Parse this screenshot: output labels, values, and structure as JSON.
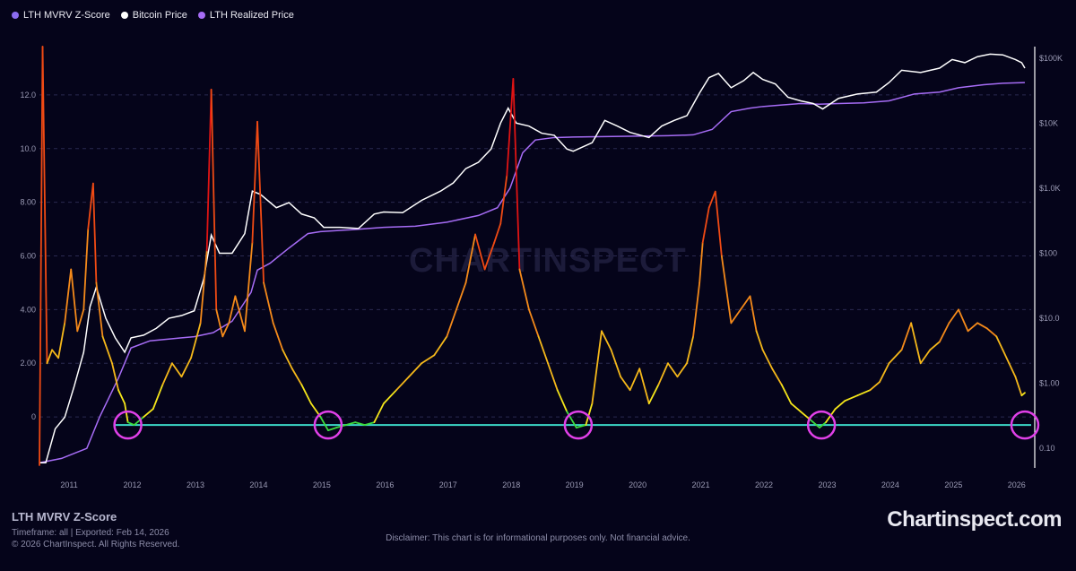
{
  "legend": [
    {
      "label": "LTH MVRV Z-Score",
      "color": "#8b6cf0"
    },
    {
      "label": "Bitcoin Price",
      "color": "#ffffff"
    },
    {
      "label": "LTH Realized Price",
      "color": "#a66cf5"
    }
  ],
  "watermark": "CHARTINSPECT",
  "footer": {
    "title": "LTH MVRV Z-Score",
    "meta": "Timeframe: all | Exported: Feb 14, 2026",
    "copyright": "© 2026 ChartInspect. All Rights Reserved.",
    "disclaimer": "Disclaimer: This chart is for informational purposes only. Not financial advice.",
    "brand": "Chartinspect.com"
  },
  "chart_data": {
    "type": "line",
    "left_axis": {
      "ticks": [
        "0",
        "2.00",
        "4.00",
        "6.00",
        "8.00",
        "10.0",
        "12.0"
      ],
      "range": [
        -1.9,
        13.8
      ]
    },
    "right_axis": {
      "scale": "log",
      "ticks": [
        "0.10",
        "$1.00",
        "$10.0",
        "$100",
        "$1.0K",
        "$10K",
        "$100K"
      ],
      "range": [
        0.05,
        150000
      ]
    },
    "x_axis": {
      "ticks": [
        "2011",
        "2012",
        "2013",
        "2014",
        "2015",
        "2016",
        "2017",
        "2018",
        "2019",
        "2020",
        "2021",
        "2022",
        "2023",
        "2024",
        "2025",
        "2026"
      ],
      "range": [
        2010.55,
        2026.25
      ]
    },
    "grid": true,
    "baseline": {
      "value": -0.3,
      "color": "#3cd8c8"
    },
    "highlight_circles": [
      2011.95,
      2015.12,
      2019.08,
      2022.93,
      2026.15
    ],
    "series": [
      {
        "name": "LTH MVRV Z-Score",
        "axis": "left",
        "color_scale": "green-yellow-orange-red",
        "x": [
          2010.55,
          2010.6,
          2010.67,
          2010.75,
          2010.85,
          2010.95,
          2011.05,
          2011.15,
          2011.25,
          2011.32,
          2011.4,
          2011.45,
          2011.55,
          2011.7,
          2011.8,
          2011.9,
          2011.95,
          2012.05,
          2012.2,
          2012.35,
          2012.5,
          2012.65,
          2012.8,
          2012.95,
          2013.1,
          2013.2,
          2013.27,
          2013.35,
          2013.45,
          2013.55,
          2013.65,
          2013.8,
          2013.92,
          2014.0,
          2014.1,
          2014.25,
          2014.4,
          2014.55,
          2014.7,
          2014.85,
          2015.0,
          2015.12,
          2015.25,
          2015.4,
          2015.55,
          2015.7,
          2015.85,
          2016.0,
          2016.2,
          2016.4,
          2016.6,
          2016.8,
          2017.0,
          2017.15,
          2017.3,
          2017.45,
          2017.6,
          2017.75,
          2017.85,
          2017.95,
          2018.05,
          2018.15,
          2018.3,
          2018.45,
          2018.6,
          2018.75,
          2018.9,
          2019.05,
          2019.2,
          2019.3,
          2019.45,
          2019.6,
          2019.75,
          2019.9,
          2020.05,
          2020.2,
          2020.35,
          2020.5,
          2020.65,
          2020.8,
          2020.9,
          2021.0,
          2021.05,
          2021.15,
          2021.25,
          2021.35,
          2021.5,
          2021.65,
          2021.8,
          2021.9,
          2022.0,
          2022.15,
          2022.3,
          2022.45,
          2022.6,
          2022.75,
          2022.9,
          2023.0,
          2023.15,
          2023.3,
          2023.5,
          2023.7,
          2023.85,
          2024.0,
          2024.2,
          2024.35,
          2024.5,
          2024.65,
          2024.8,
          2024.95,
          2025.1,
          2025.25,
          2025.4,
          2025.55,
          2025.7,
          2025.8,
          2025.9,
          2026.0,
          2026.1,
          2026.15
        ],
        "values": [
          -1.8,
          13.8,
          2.0,
          2.5,
          2.2,
          3.5,
          5.5,
          3.2,
          4.0,
          7.0,
          8.7,
          5.0,
          3.0,
          2.0,
          1.0,
          0.5,
          -0.2,
          -0.3,
          0.0,
          0.3,
          1.2,
          2.0,
          1.5,
          2.2,
          3.5,
          6.2,
          12.2,
          4.0,
          3.0,
          3.5,
          4.5,
          3.2,
          6.5,
          11.0,
          5.0,
          3.5,
          2.5,
          1.8,
          1.2,
          0.5,
          0.0,
          -0.5,
          -0.4,
          -0.3,
          -0.2,
          -0.3,
          -0.2,
          0.5,
          1.0,
          1.5,
          2.0,
          2.3,
          3.0,
          4.0,
          5.0,
          6.8,
          5.5,
          6.5,
          7.2,
          9.0,
          12.6,
          5.5,
          4.0,
          3.0,
          2.0,
          1.0,
          0.2,
          -0.4,
          -0.3,
          0.5,
          3.2,
          2.5,
          1.5,
          1.0,
          1.8,
          0.5,
          1.2,
          2.0,
          1.5,
          2.0,
          3.0,
          5.0,
          6.5,
          7.8,
          8.4,
          6.0,
          3.5,
          4.0,
          4.5,
          3.2,
          2.5,
          1.8,
          1.2,
          0.5,
          0.2,
          -0.1,
          -0.4,
          -0.2,
          0.3,
          0.6,
          0.8,
          1.0,
          1.3,
          2.0,
          2.5,
          3.5,
          2.0,
          2.5,
          2.8,
          3.5,
          4.0,
          3.2,
          3.5,
          3.3,
          3.0,
          2.5,
          2.0,
          1.5,
          0.8,
          0.9
        ]
      },
      {
        "name": "Bitcoin Price",
        "axis": "right",
        "color": "#ffffff",
        "x": [
          2010.55,
          2010.65,
          2010.8,
          2010.95,
          2011.1,
          2011.25,
          2011.35,
          2011.45,
          2011.6,
          2011.75,
          2011.9,
          2012.0,
          2012.2,
          2012.4,
          2012.6,
          2012.8,
          2013.0,
          2013.15,
          2013.27,
          2013.4,
          2013.6,
          2013.8,
          2013.92,
          2014.05,
          2014.3,
          2014.5,
          2014.7,
          2014.9,
          2015.05,
          2015.3,
          2015.6,
          2015.85,
          2016.0,
          2016.3,
          2016.6,
          2016.9,
          2017.1,
          2017.3,
          2017.5,
          2017.7,
          2017.85,
          2017.97,
          2018.1,
          2018.3,
          2018.5,
          2018.7,
          2018.9,
          2019.0,
          2019.3,
          2019.5,
          2019.7,
          2019.9,
          2020.2,
          2020.4,
          2020.6,
          2020.8,
          2021.0,
          2021.15,
          2021.3,
          2021.5,
          2021.7,
          2021.85,
          2022.0,
          2022.2,
          2022.4,
          2022.6,
          2022.8,
          2022.95,
          2023.2,
          2023.5,
          2023.8,
          2024.0,
          2024.2,
          2024.5,
          2024.8,
          2025.0,
          2025.2,
          2025.4,
          2025.6,
          2025.8,
          2026.0,
          2026.1,
          2026.15
        ],
        "values": [
          0.06,
          0.06,
          0.2,
          0.3,
          0.9,
          3.0,
          15,
          30,
          10,
          5,
          3,
          5,
          5.5,
          7,
          10,
          11,
          13,
          40,
          190,
          100,
          100,
          200,
          900,
          800,
          500,
          600,
          400,
          350,
          250,
          250,
          240,
          400,
          430,
          420,
          650,
          900,
          1200,
          2000,
          2500,
          4000,
          10000,
          17000,
          10000,
          9000,
          7000,
          6500,
          4000,
          3700,
          5000,
          11000,
          9000,
          7200,
          6000,
          9000,
          11000,
          13000,
          29000,
          50000,
          58000,
          35000,
          45000,
          60000,
          47000,
          40000,
          25000,
          22000,
          20000,
          16500,
          24000,
          28000,
          30000,
          42000,
          65000,
          60000,
          70000,
          95000,
          85000,
          105000,
          115000,
          112000,
          95000,
          85000,
          70000
        ]
      },
      {
        "name": "LTH Realized Price",
        "axis": "right",
        "color": "#a66cf5",
        "x": [
          2010.55,
          2010.9,
          2011.3,
          2011.5,
          2011.8,
          2012.0,
          2012.3,
          2012.8,
          2013.0,
          2013.3,
          2013.6,
          2013.9,
          2014.0,
          2014.2,
          2014.5,
          2014.8,
          2015.0,
          2015.5,
          2016.0,
          2016.5,
          2017.0,
          2017.5,
          2017.8,
          2018.0,
          2018.2,
          2018.4,
          2018.7,
          2019.0,
          2019.5,
          2020.0,
          2020.5,
          2020.9,
          2021.2,
          2021.5,
          2021.8,
          2022.0,
          2022.3,
          2022.6,
          2022.9,
          2023.2,
          2023.6,
          2024.0,
          2024.4,
          2024.8,
          2025.1,
          2025.5,
          2025.8,
          2026.15
        ],
        "values": [
          0.06,
          0.07,
          0.1,
          0.3,
          1.2,
          3.5,
          4.5,
          5.0,
          5.2,
          6.0,
          9.0,
          25,
          55,
          70,
          120,
          200,
          215,
          230,
          250,
          260,
          300,
          380,
          500,
          1000,
          3500,
          5500,
          6000,
          6100,
          6200,
          6300,
          6400,
          6600,
          8000,
          15000,
          17000,
          18000,
          19000,
          20000,
          19500,
          20000,
          20500,
          22000,
          28000,
          30000,
          35000,
          39000,
          41000,
          42000
        ]
      }
    ]
  }
}
